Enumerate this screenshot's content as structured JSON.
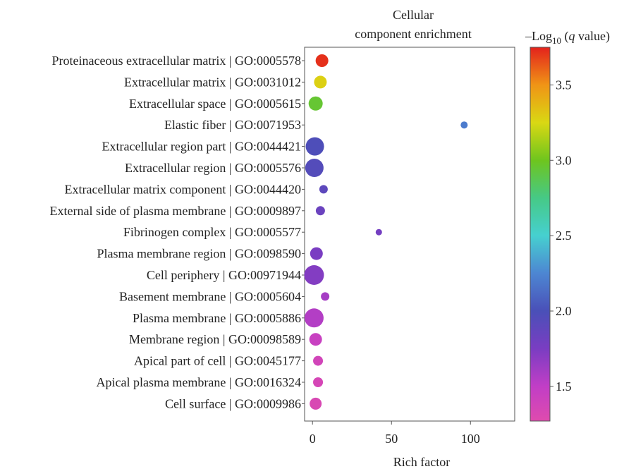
{
  "chart_data": {
    "type": "scatter",
    "title_lines": [
      "Cellular",
      "component enrichment"
    ],
    "xlabel": "Rich factor",
    "xlim": [
      -5,
      128
    ],
    "xticks": [
      0,
      50,
      100
    ],
    "colorbar": {
      "title_prefix": "–Log",
      "title_sub": "10",
      "title_suffix_1": " (",
      "title_q": "q",
      "title_suffix_2": " value)",
      "range": [
        1.27,
        3.75
      ],
      "ticks": [
        1.5,
        2.0,
        2.5,
        3.0,
        3.5
      ],
      "tick_labels": [
        "1.5",
        "2.0",
        "2.5",
        "3.0",
        "3.5"
      ],
      "stops": [
        {
          "v": 1.27,
          "color": "#df4bae"
        },
        {
          "v": 1.5,
          "color": "#c13ec6"
        },
        {
          "v": 1.75,
          "color": "#7a3dc2"
        },
        {
          "v": 2.0,
          "color": "#4a50b8"
        },
        {
          "v": 2.25,
          "color": "#4d86d2"
        },
        {
          "v": 2.5,
          "color": "#46d0d0"
        },
        {
          "v": 2.75,
          "color": "#46c986"
        },
        {
          "v": 3.0,
          "color": "#6ec51e"
        },
        {
          "v": 3.25,
          "color": "#d9d813"
        },
        {
          "v": 3.5,
          "color": "#f09416"
        },
        {
          "v": 3.75,
          "color": "#e3221c"
        }
      ]
    },
    "categories": [
      "Proteinaceous extracellular matrix | GO:0005578",
      "Extracellular matrix | GO:0031012",
      "Extracellular space | GO:0005615",
      "Elastic fiber | GO:0071953",
      "Extracellular region part | GO:0044421",
      "Extracellular region | GO:0005576",
      "Extracellular matrix component | GO:0044420",
      "External side of plasma membrane | GO:0009897",
      "Fibrinogen complex | GO:0005577",
      "Plasma membrane region | GO:0098590",
      "Cell periphery | GO:00971944",
      "Basement membrane | GO:0005604",
      "Plasma membrane | GO:0005886",
      "Membrane region | GO:00098589",
      "Apical part of cell | GO:0045177",
      "Apical plasma membrane | GO:0016324",
      "Cell surface | GO:0009986"
    ],
    "points": [
      {
        "x": 6,
        "q": 3.72,
        "size": 9
      },
      {
        "x": 5,
        "q": 3.28,
        "size": 9
      },
      {
        "x": 2,
        "q": 2.95,
        "size": 10
      },
      {
        "x": 96,
        "q": 2.2,
        "size": 5
      },
      {
        "x": 1.5,
        "q": 1.98,
        "size": 13
      },
      {
        "x": 1.2,
        "q": 1.95,
        "size": 13
      },
      {
        "x": 7,
        "q": 1.9,
        "size": 6
      },
      {
        "x": 5,
        "q": 1.83,
        "size": 6.5
      },
      {
        "x": 42,
        "q": 1.78,
        "size": 4.5
      },
      {
        "x": 2.5,
        "q": 1.75,
        "size": 9
      },
      {
        "x": 1,
        "q": 1.72,
        "size": 14
      },
      {
        "x": 8,
        "q": 1.6,
        "size": 6
      },
      {
        "x": 1,
        "q": 1.55,
        "size": 13.5
      },
      {
        "x": 2,
        "q": 1.45,
        "size": 9
      },
      {
        "x": 3.5,
        "q": 1.38,
        "size": 7
      },
      {
        "x": 3.5,
        "q": 1.35,
        "size": 7
      },
      {
        "x": 2,
        "q": 1.32,
        "size": 8.5
      }
    ]
  }
}
